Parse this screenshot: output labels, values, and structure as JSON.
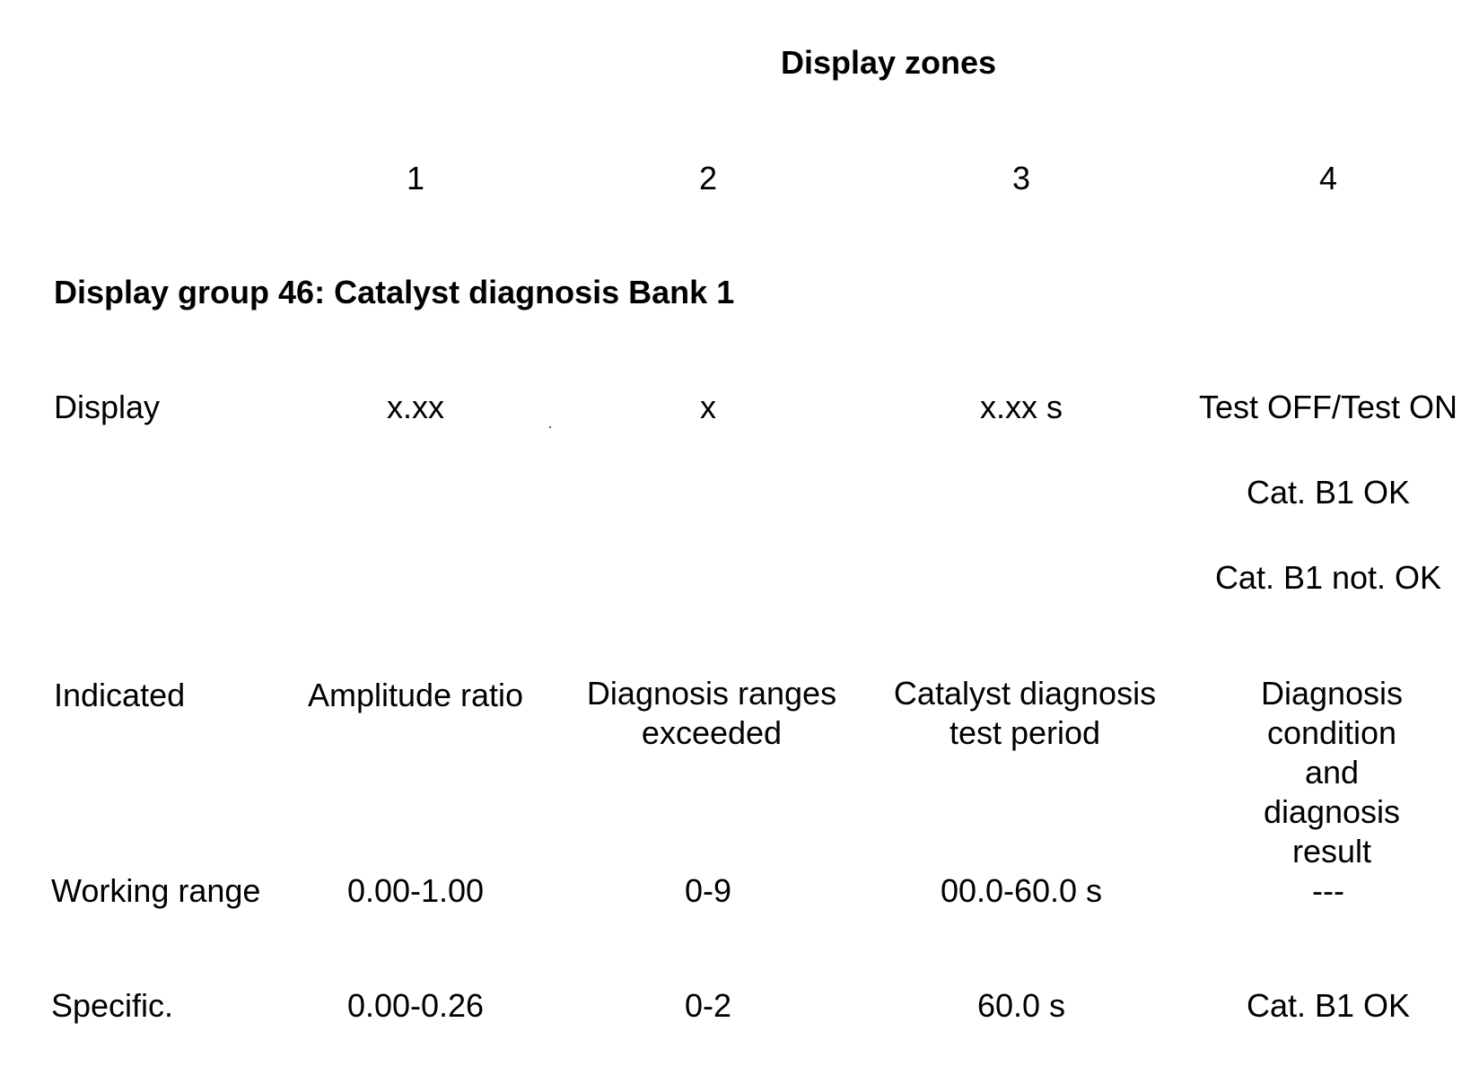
{
  "header": {
    "title": "Display zones",
    "zones": [
      "1",
      "2",
      "3",
      "4"
    ]
  },
  "group_title": "Display group 46: Catalyst diagnosis Bank 1",
  "display_row": {
    "label": "Display",
    "zone1": "x.xx",
    "zone2": "x",
    "zone3": "x.xx s",
    "zone4_values": [
      "Test OFF/Test ON",
      "Cat. B1 OK",
      "Cat. B1 not. OK"
    ]
  },
  "indicated_row": {
    "label": "Indicated",
    "zone1": "Amplitude ratio",
    "zone2_lines": [
      "Diagnosis ranges",
      "exceeded"
    ],
    "zone3_lines": [
      "Catalyst diagnosis",
      "test period"
    ],
    "zone4_lines": [
      "Diagnosis",
      "condition and",
      "diagnosis result"
    ]
  },
  "working_range_row": {
    "label": "Working range",
    "zone1": "0.00-1.00",
    "zone2": "0-9",
    "zone3": "00.0-60.0 s",
    "zone4": "---"
  },
  "specific_row": {
    "label": "Specific.",
    "zone1": "0.00-0.26",
    "zone2": "0-2",
    "zone3": "60.0 s",
    "zone4": "Cat. B1 OK"
  }
}
